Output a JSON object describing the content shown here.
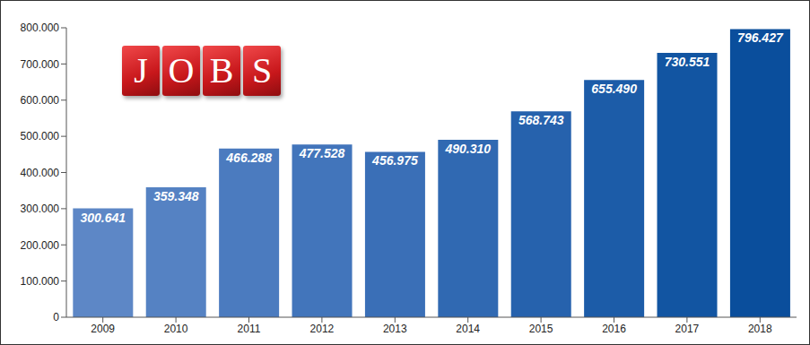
{
  "chart_data": {
    "type": "bar",
    "title": "JOBS",
    "categories": [
      "2009",
      "2010",
      "2011",
      "2012",
      "2013",
      "2014",
      "2015",
      "2016",
      "2017",
      "2018"
    ],
    "values": [
      300641,
      359348,
      466288,
      477528,
      456975,
      490310,
      568743,
      655490,
      730551,
      796427
    ],
    "value_labels": [
      "300.641",
      "359.348",
      "466.288",
      "477.528",
      "456.975",
      "490.310",
      "568.743",
      "655.490",
      "730.551",
      "796.427"
    ],
    "colors": [
      "#5d87c6",
      "#5582c3",
      "#4b7bbf",
      "#4275bb",
      "#3a6fb7",
      "#3069b2",
      "#2662ad",
      "#1c5ca8",
      "#1255a2",
      "#0a4e9c"
    ],
    "ylim": [
      0,
      800000
    ],
    "yticks": [
      0,
      {
        "value": 100000,
        "label": "100.000"
      },
      {
        "value": 200000,
        "label": "200.000"
      },
      {
        "value": 300000,
        "label": "300.000"
      },
      {
        "value": 400000,
        "label": "400.000"
      },
      {
        "value": 500000,
        "label": "500.000"
      },
      {
        "value": 600000,
        "label": "600.000"
      },
      {
        "value": 700000,
        "label": "700.000"
      },
      {
        "value": 800000,
        "label": "800.000"
      }
    ],
    "grid": false,
    "data_labels": true
  }
}
